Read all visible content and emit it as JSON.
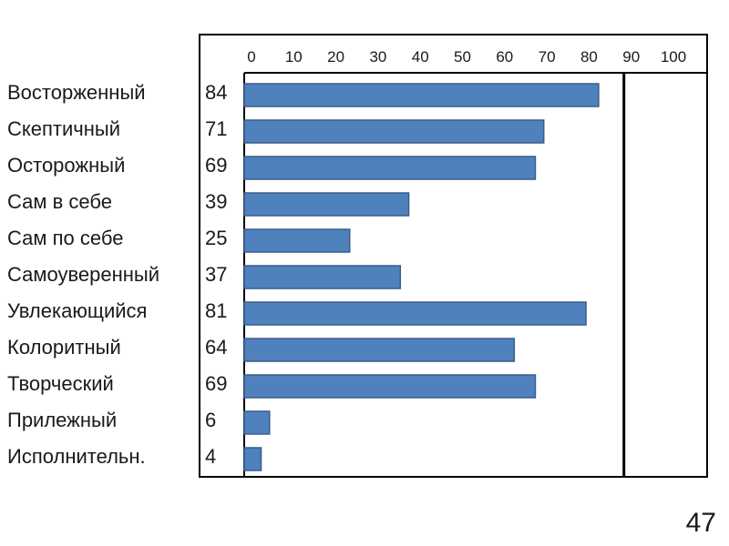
{
  "page_number": "47",
  "chart_data": {
    "type": "bar",
    "orientation": "horizontal",
    "categories": [
      "Восторженный",
      "Скептичный",
      "Осторожный",
      "Сам в себе",
      "Сам по себе",
      "Самоуверенный",
      "Увлекающийся",
      "Колоритный",
      "Творческий",
      "Прилежный",
      "Исполнительн."
    ],
    "values": [
      84,
      71,
      69,
      39,
      25,
      37,
      81,
      64,
      69,
      6,
      4
    ],
    "value_labels": [
      "84",
      "71",
      "69",
      "39",
      "25",
      "37",
      "81",
      "64",
      "69",
      "6",
      "4"
    ],
    "x_ticks": [
      "0",
      "10",
      "20",
      "30",
      "40",
      "50",
      "60",
      "70",
      "80",
      "90",
      "100"
    ],
    "reference_line": 90,
    "xlim": [
      0,
      100
    ],
    "tick_position": "top",
    "grid": false,
    "bar_color": "#4f81bd",
    "title": "",
    "xlabel": "",
    "ylabel": ""
  }
}
